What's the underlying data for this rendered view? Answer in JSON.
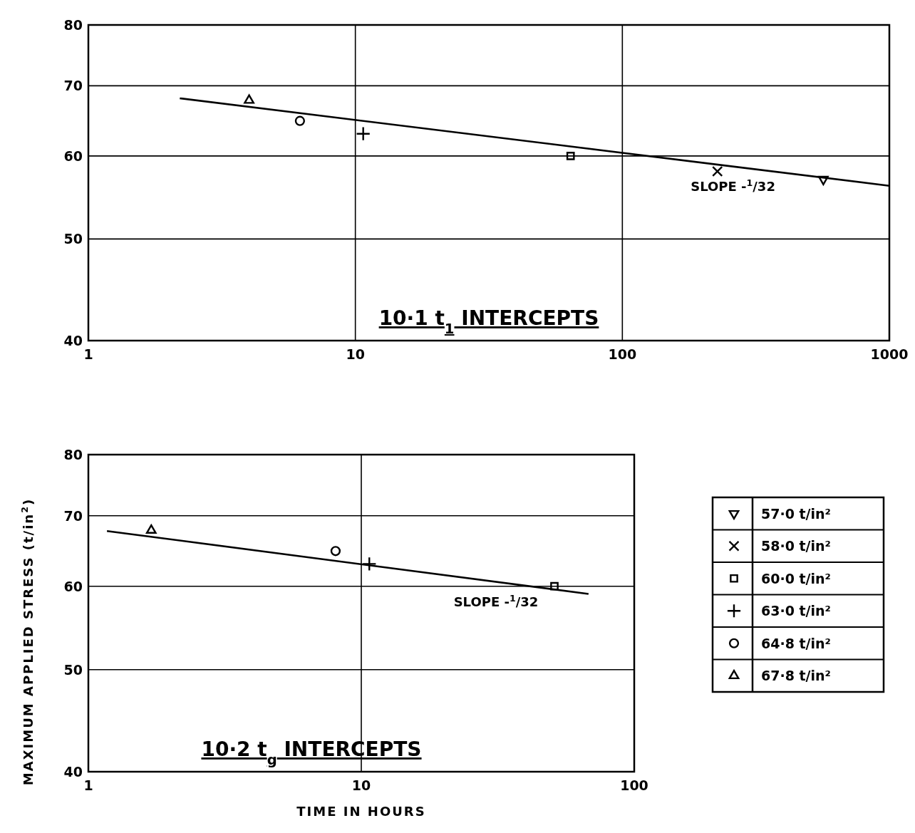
{
  "chart_data": [
    {
      "type": "scatter",
      "title": "10·1 t$_{1}$ INTERCEPTS",
      "log": "xy",
      "grid": true,
      "legend": "bottom right",
      "xlim": [
        1,
        1000
      ],
      "xticks": [
        1,
        10,
        100,
        1000
      ],
      "ylim": [
        40,
        80
      ],
      "yticks": [
        40,
        50,
        60,
        70,
        80
      ],
      "annotations": [
        "SLOPE -$^{1}$/32"
      ],
      "series": [
        {
          "name": "57·0 t/in²",
          "color": "#000000",
          "marker": "triangle-down",
          "x": [
            566
          ],
          "values": [
            57.0
          ]
        },
        {
          "name": "58·0 t/in²",
          "color": "#000000",
          "marker": "x",
          "x": [
            227
          ],
          "values": [
            58.0
          ]
        },
        {
          "name": "60·0 t/in²",
          "color": "#000000",
          "marker": "square",
          "x": [
            64
          ],
          "values": [
            60.0
          ]
        },
        {
          "name": "63·0 t/in²",
          "color": "#000000",
          "marker": "cross",
          "x": [
            10.7
          ],
          "values": [
            63.0
          ]
        },
        {
          "name": "64·8 t/in²",
          "color": "#000000",
          "marker": "circle",
          "x": [
            6.2
          ],
          "values": [
            64.8
          ]
        },
        {
          "name": "67·8 t/in²",
          "color": "#000000",
          "marker": "triangle",
          "x": [
            4.0
          ],
          "values": [
            67.8
          ]
        },
        {
          "type": "line",
          "color": "#000000",
          "x": [
            2.2,
            1000
          ],
          "values": [
            68.1,
            56.2
          ]
        }
      ]
    },
    {
      "type": "scatter",
      "title": "10·2 t$_{g}$ INTERCEPTS",
      "log": "xy",
      "grid": true,
      "legend": false,
      "xlabel": "TIME IN HOURS",
      "ylabel": "MAXIMUM APPLIED STRESS (t/in$^{2}$)",
      "xlim": [
        1,
        100
      ],
      "xticks": [
        1,
        10,
        100
      ],
      "ylim": [
        40,
        80
      ],
      "yticks": [
        40,
        50,
        60,
        70,
        80
      ],
      "annotations": [
        "SLOPE -$^{1}$/32"
      ],
      "series": [
        {
          "color": "#000000",
          "marker": "square",
          "x": [
            51
          ],
          "values": [
            60.0
          ]
        },
        {
          "color": "#000000",
          "marker": "cross",
          "x": [
            10.7
          ],
          "values": [
            63.0
          ]
        },
        {
          "color": "#000000",
          "marker": "circle",
          "x": [
            8.05
          ],
          "values": [
            64.8
          ]
        },
        {
          "color": "#000000",
          "marker": "triangle",
          "x": [
            1.7
          ],
          "values": [
            67.8
          ]
        },
        {
          "type": "line",
          "color": "#000000",
          "x": [
            1.17,
            68
          ],
          "values": [
            67.7,
            59.0
          ]
        }
      ]
    }
  ]
}
